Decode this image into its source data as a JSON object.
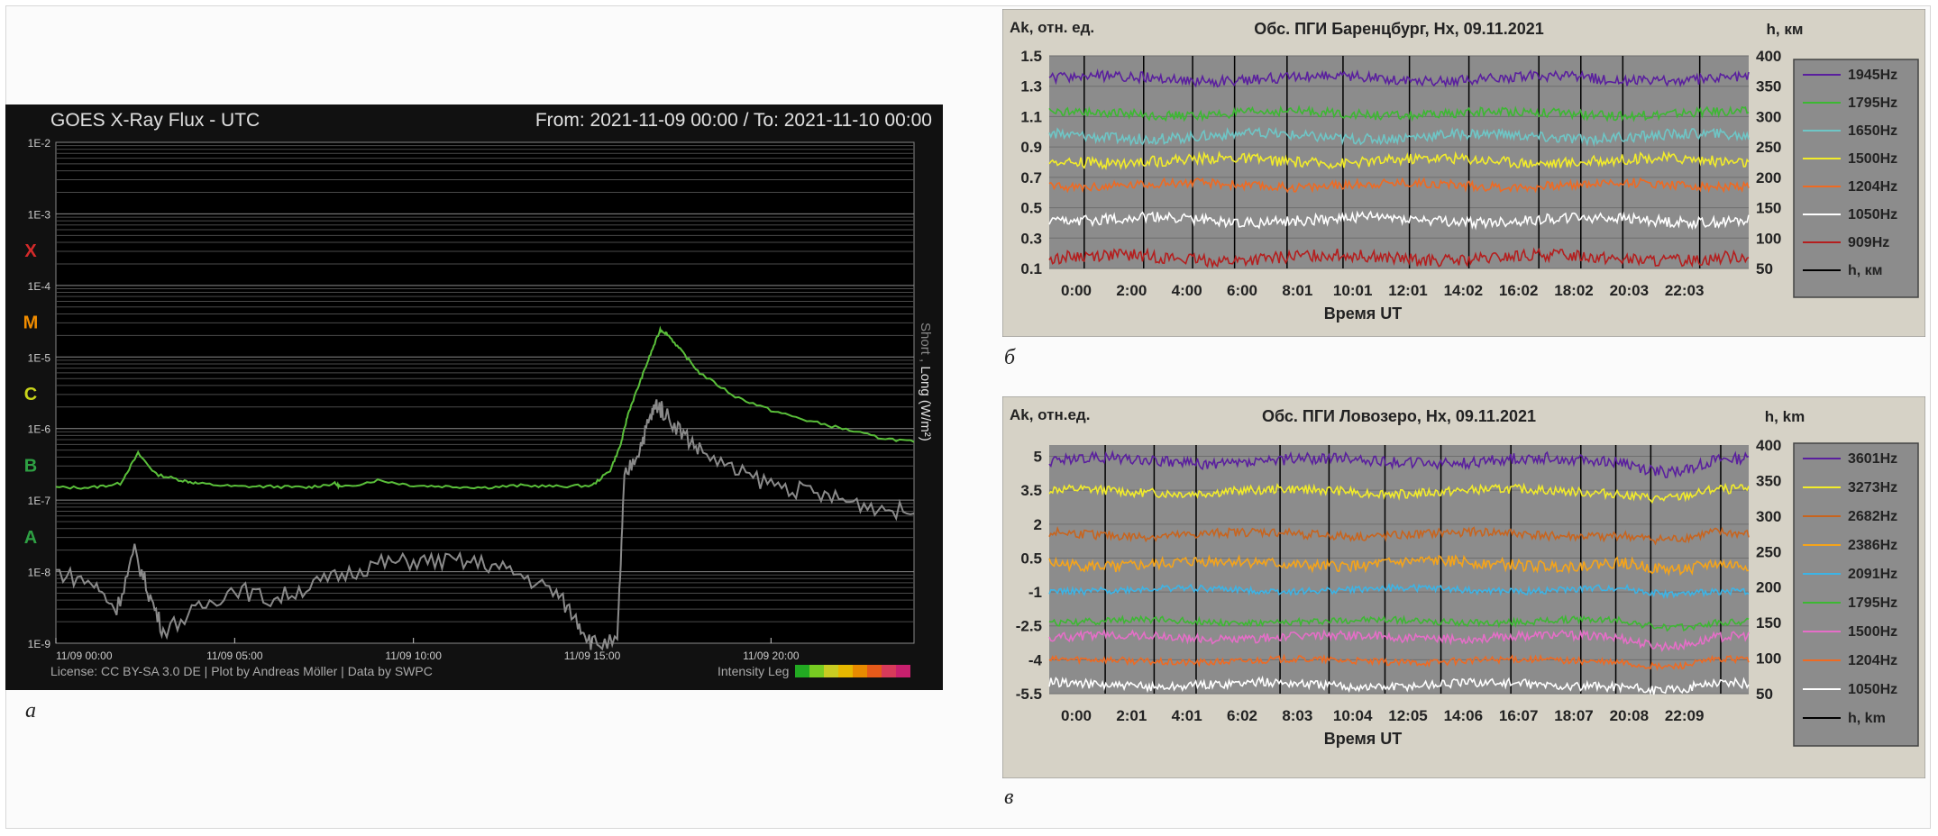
{
  "panels": {
    "a": {
      "caption": "а",
      "title": "GOES X-Ray Flux - UTC",
      "range_text": "From: 2021-11-09 00:00  /  To: 2021-11-10 00:00",
      "license_text": "License: CC BY-SA 3.0 DE | Plot by Andreas Möller | Data by SWPC",
      "intensity_label": "Intensity Leg",
      "intensity_colors": [
        "#22aa22",
        "#77cc22",
        "#c8cc22",
        "#e6b800",
        "#e88a00",
        "#e65a1a",
        "#d83a5a",
        "#c8206e"
      ],
      "y_axis_label_short": "Short",
      "y_axis_label_sep": " , ",
      "y_axis_label_long": "Long (W/m²)"
    },
    "b": {
      "caption": "б",
      "title": "Обс. ПГИ Баренцбург, Hx, 09.11.2021",
      "ylabel_left": "Ak, отн. ед.",
      "ylabel_right": "h, км",
      "xlabel": "Время UT"
    },
    "c": {
      "caption": "в",
      "title": "Обс. ПГИ Ловозеро, Hx, 09.11.2021",
      "ylabel_left": "Ak, отн.ед.",
      "ylabel_right": "h, km",
      "xlabel": "Время UT"
    }
  },
  "chart_data": [
    {
      "type": "line",
      "panel": "a",
      "title": "GOES X-Ray Flux - UTC",
      "x_ticks": [
        "11/09 00:00",
        "11/09 05:00",
        "11/09 10:00",
        "11/09 15:00",
        "11/09 20:00"
      ],
      "y_scale": "log",
      "y_ticks": [
        "1E-9",
        "1E-8",
        "1E-7",
        "1E-6",
        "1E-5",
        "1E-4",
        "1E-3",
        "1E-2"
      ],
      "ylim": [
        1e-09,
        0.01
      ],
      "class_labels": [
        {
          "label": "A",
          "color": "#2ea043"
        },
        {
          "label": "B",
          "color": "#2ea043"
        },
        {
          "label": "C",
          "color": "#c9d41a"
        },
        {
          "label": "M",
          "color": "#f08c00"
        },
        {
          "label": "X",
          "color": "#d42a2a"
        }
      ],
      "x_hours_range": [
        0,
        24
      ],
      "series": [
        {
          "color": "#5abf3a",
          "points": [
            [
              0,
              1.5e-07
            ],
            [
              1,
              1.5e-07
            ],
            [
              1.8,
              1.7e-07
            ],
            [
              2.3,
              4.5e-07
            ],
            [
              2.8,
              2.3e-07
            ],
            [
              3.5,
              1.9e-07
            ],
            [
              4,
              1.7e-07
            ],
            [
              5,
              1.55e-07
            ],
            [
              6,
              1.55e-07
            ],
            [
              7,
              1.5e-07
            ],
            [
              7.8,
              1.7e-07
            ],
            [
              8,
              1.5e-07
            ],
            [
              9,
              1.9e-07
            ],
            [
              10,
              1.6e-07
            ],
            [
              11,
              1.55e-07
            ],
            [
              12,
              1.5e-07
            ],
            [
              13,
              1.6e-07
            ],
            [
              14,
              1.55e-07
            ],
            [
              15,
              1.6e-07
            ],
            [
              15.5,
              2.6e-07
            ],
            [
              15.8,
              6e-07
            ],
            [
              16,
              1.6e-06
            ],
            [
              16.3,
              4e-06
            ],
            [
              16.6,
              1e-05
            ],
            [
              16.9,
              2.4e-05
            ],
            [
              17.1,
              2.1e-05
            ],
            [
              17.5,
              1.2e-05
            ],
            [
              18,
              6e-06
            ],
            [
              19,
              2.8e-06
            ],
            [
              20,
              1.8e-06
            ],
            [
              21,
              1.3e-06
            ],
            [
              22,
              1e-06
            ],
            [
              23,
              7.5e-07
            ],
            [
              24,
              6.5e-07
            ]
          ]
        },
        {
          "color": "#8a8a8a",
          "points": [
            [
              0,
              1e-08
            ],
            [
              1,
              7e-09
            ],
            [
              1.7,
              3e-09
            ],
            [
              2.2,
              1.9e-08
            ],
            [
              2.6,
              5e-09
            ],
            [
              3,
              1.5e-09
            ],
            [
              4,
              3e-09
            ],
            [
              5,
              6e-09
            ],
            [
              6,
              4e-09
            ],
            [
              7,
              6e-09
            ],
            [
              8,
              9e-09
            ],
            [
              9,
              1.3e-08
            ],
            [
              10,
              1.4e-08
            ],
            [
              11,
              1.4e-08
            ],
            [
              12,
              1.3e-08
            ],
            [
              13,
              9e-09
            ],
            [
              14,
              5e-09
            ],
            [
              14.6,
              2e-09
            ],
            [
              15,
              1e-09
            ],
            [
              15.7,
              1e-09
            ],
            [
              15.9,
              2e-07
            ],
            [
              16.3,
              5e-07
            ],
            [
              16.6,
              1.3e-06
            ],
            [
              16.8,
              2.2e-06
            ],
            [
              17,
              1.7e-06
            ],
            [
              17.5,
              9e-07
            ],
            [
              18,
              5e-07
            ],
            [
              19,
              2.5e-07
            ],
            [
              20,
              1.7e-07
            ],
            [
              21,
              1.3e-07
            ],
            [
              22,
              1e-07
            ],
            [
              23,
              8e-08
            ],
            [
              24,
              6.5e-08
            ]
          ]
        }
      ]
    },
    {
      "type": "line",
      "panel": "b",
      "title": "Обс. ПГИ Баренцбург, Hx, 09.11.2021",
      "xlabel": "Время UT",
      "ylabel": "Ak, отн. ед.",
      "ylabel_right": "h, км",
      "x_ticks": [
        "0:00",
        "2:00",
        "4:00",
        "6:00",
        "8:01",
        "10:01",
        "12:01",
        "14:02",
        "16:02",
        "18:02",
        "20:03",
        "22:03"
      ],
      "y_ticks": [
        "0.1",
        "0.3",
        "0.5",
        "0.7",
        "0.9",
        "1.1",
        "1.3",
        "1.5"
      ],
      "ylim": [
        0.1,
        1.5
      ],
      "y_right_ticks": [
        "50",
        "100",
        "150",
        "200",
        "250",
        "300",
        "350",
        "400"
      ],
      "y_right_lim": [
        50,
        400
      ],
      "series": [
        {
          "name": "1945Hz",
          "color": "#5a1f9e",
          "base": 1.35,
          "amp": 0.035
        },
        {
          "name": "1795Hz",
          "color": "#3cb832",
          "base": 1.12,
          "amp": 0.03
        },
        {
          "name": "1650Hz",
          "color": "#6ec6c6",
          "base": 0.97,
          "amp": 0.035
        },
        {
          "name": "1500Hz",
          "color": "#f2ec2a",
          "base": 0.81,
          "amp": 0.035
        },
        {
          "name": "1204Hz",
          "color": "#ef6a22",
          "base": 0.65,
          "amp": 0.03
        },
        {
          "name": "1050Hz",
          "color": "#ffffff",
          "base": 0.42,
          "amp": 0.035
        },
        {
          "name": "909Hz",
          "color": "#b41e1e",
          "base": 0.17,
          "amp": 0.04
        },
        {
          "name": "h, км",
          "color": "#000000"
        }
      ]
    },
    {
      "type": "line",
      "panel": "c",
      "title": "Обс. ПГИ Ловозеро, Hx, 09.11.2021",
      "xlabel": "Время UT",
      "ylabel": "Ak, отн.ед.",
      "ylabel_right": "h, km",
      "x_ticks": [
        "0:00",
        "2:01",
        "4:01",
        "6:02",
        "8:03",
        "10:04",
        "12:05",
        "14:06",
        "16:07",
        "18:07",
        "20:08",
        "22:09"
      ],
      "y_ticks": [
        "-5.5",
        "-4",
        "-2.5",
        "-1",
        "0.5",
        "2",
        "3.5",
        "5"
      ],
      "ylim": [
        -5.5,
        5.5
      ],
      "y_right_ticks": [
        "50",
        "100",
        "150",
        "200",
        "250",
        "300",
        "350",
        "400"
      ],
      "y_right_lim": [
        50,
        400
      ],
      "series": [
        {
          "name": "3601Hz",
          "color": "#5a1f9e",
          "base": 4.8,
          "amp": 0.25
        },
        {
          "name": "3273Hz",
          "color": "#f2ec2a",
          "base": 3.45,
          "amp": 0.2
        },
        {
          "name": "2682Hz",
          "color": "#c8641e",
          "base": 1.55,
          "amp": 0.2
        },
        {
          "name": "2386Hz",
          "color": "#f5a41a",
          "base": 0.25,
          "amp": 0.25
        },
        {
          "name": "2091Hz",
          "color": "#3cb4e6",
          "base": -0.9,
          "amp": 0.15
        },
        {
          "name": "1795Hz",
          "color": "#3cb832",
          "base": -2.3,
          "amp": 0.15
        },
        {
          "name": "1500Hz",
          "color": "#e66ec8",
          "base": -3.0,
          "amp": 0.2
        },
        {
          "name": "1204Hz",
          "color": "#ef6a22",
          "base": -4.05,
          "amp": 0.15
        },
        {
          "name": "1050Hz",
          "color": "#ffffff",
          "base": -5.1,
          "amp": 0.2
        },
        {
          "name": "h, km",
          "color": "#000000"
        }
      ]
    }
  ]
}
